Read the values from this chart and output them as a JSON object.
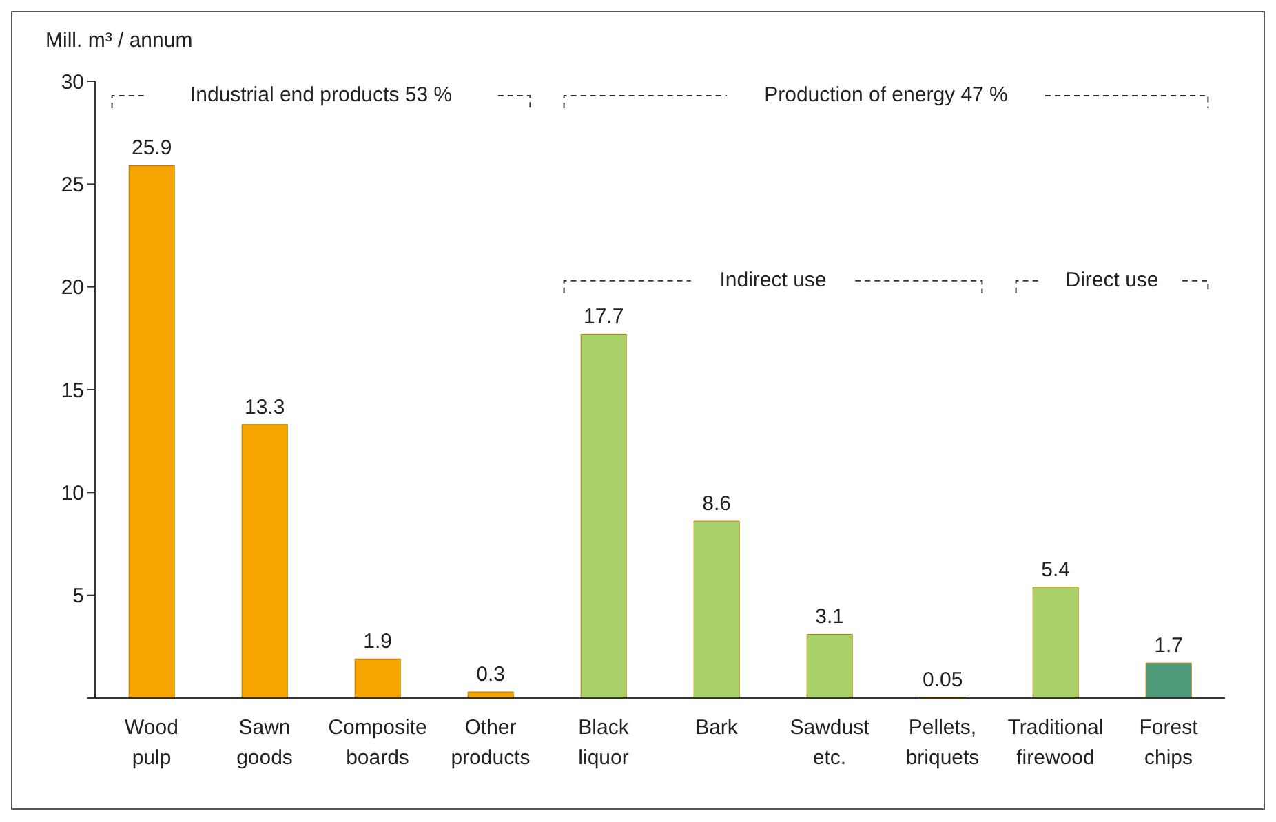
{
  "chart_data": {
    "type": "bar",
    "ylabel": "Mill. m³ / annum",
    "categories": [
      "Wood pulp",
      "Sawn goods",
      "Composite boards",
      "Other products",
      "Black liquor",
      "Bark",
      "Sawdust etc.",
      "Pellets, briquets",
      "Traditional firewood",
      "Forest chips"
    ],
    "values": [
      25.9,
      13.3,
      1.9,
      0.3,
      17.7,
      8.6,
      3.1,
      0.05,
      5.4,
      1.7
    ],
    "colors": [
      "#f5a400",
      "#f5a400",
      "#f5a400",
      "#f5a400",
      "#a9d16a",
      "#a9d16a",
      "#a9d16a",
      "#a9d16a",
      "#a9d16a",
      "#4e9a78"
    ],
    "ylim": [
      0,
      30
    ],
    "yticks": [
      {
        "value": 0,
        "label": null
      },
      5,
      10,
      15,
      20,
      25,
      30
    ],
    "data_labels": true,
    "annotations": [
      "Industrial end products 53 %",
      "Production of energy 47 %",
      "Indirect use",
      "Direct use"
    ]
  }
}
